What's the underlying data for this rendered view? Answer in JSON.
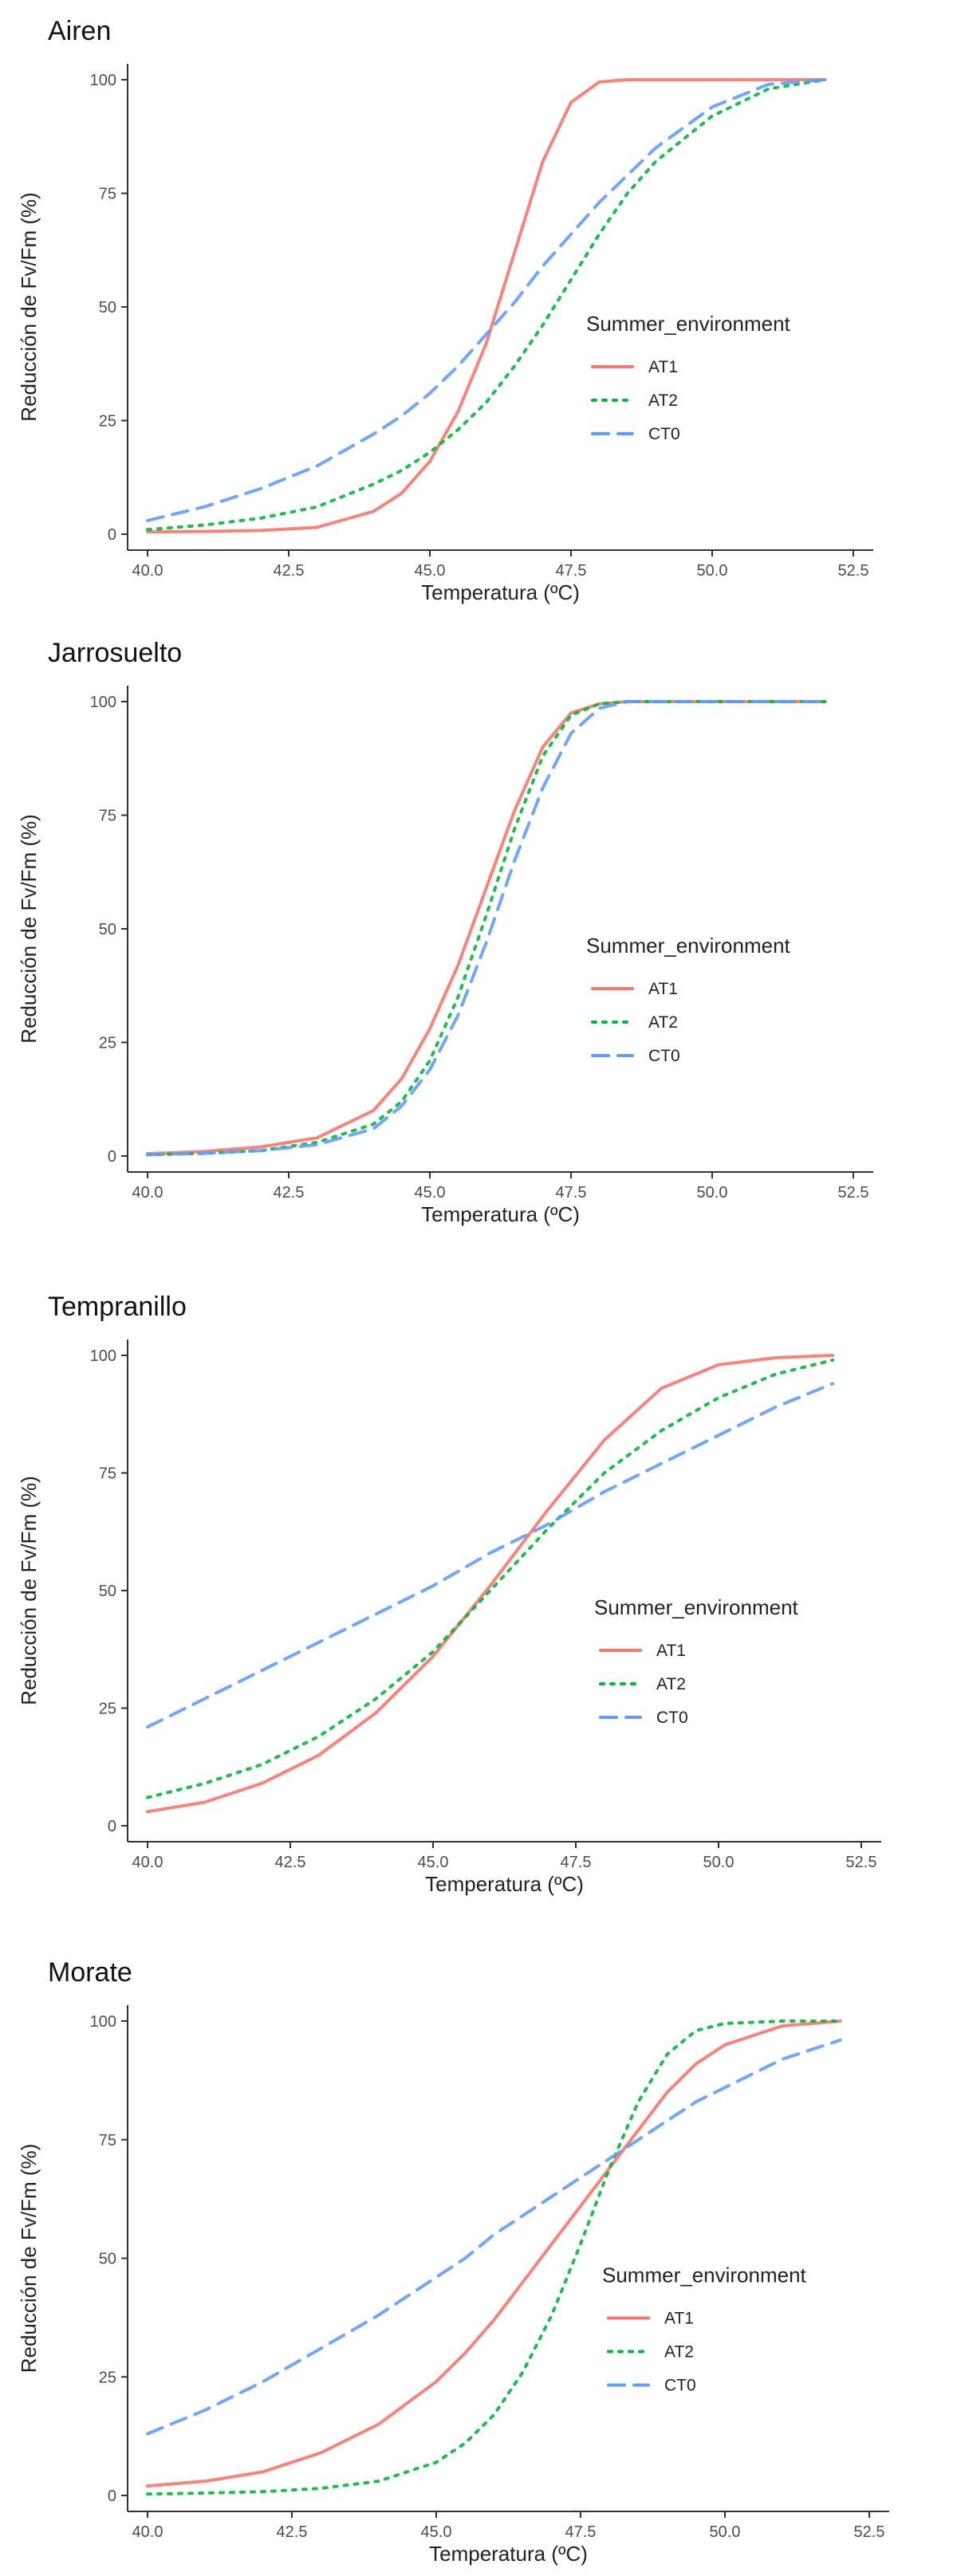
{
  "colors": {
    "AT1": "#F8766D",
    "AT2": "#00BA38",
    "CT0": "#619CFF",
    "axis": "#333333"
  },
  "legend": {
    "title": "Summer_environment",
    "placement": "right",
    "entries": [
      "AT1",
      "AT2",
      "CT0"
    ]
  },
  "chart_data": [
    {
      "type": "line",
      "title": "Airen",
      "xlabel": "Temperatura (ºC)",
      "ylabel": "Reducción de Fv/Fm (%)",
      "xlim": [
        40,
        52.5
      ],
      "ylim": [
        0,
        100
      ],
      "x_ticks": [
        "40.0",
        "42.5",
        "45.0",
        "47.5",
        "50.0",
        "52.5"
      ],
      "y_ticks": [
        "0",
        "25",
        "50",
        "75",
        "100"
      ],
      "grid": false,
      "x": [
        40,
        41,
        42,
        43,
        44,
        44.5,
        45,
        45.5,
        46,
        46.5,
        47,
        47.5,
        48,
        48.5,
        49,
        50,
        51,
        52
      ],
      "series": [
        {
          "name": "AT1",
          "values": [
            0.5,
            0.6,
            0.8,
            1.5,
            5,
            9,
            16,
            27,
            42,
            62,
            82,
            95,
            99.5,
            100,
            100,
            100,
            100,
            100
          ]
        },
        {
          "name": "AT2",
          "values": [
            1,
            2,
            3.5,
            6,
            11,
            14,
            18,
            23,
            29,
            37,
            46,
            56,
            66,
            75,
            82,
            92,
            98,
            100
          ]
        },
        {
          "name": "CT0",
          "values": [
            3,
            6,
            10,
            15,
            22,
            26,
            31,
            37,
            44,
            51,
            59,
            66,
            73,
            79,
            85,
            94,
            99,
            100
          ]
        }
      ]
    },
    {
      "type": "line",
      "title": "Jarrosuelto",
      "xlabel": "Temperatura (ºC)",
      "ylabel": "Reducción de Fv/Fm (%)",
      "xlim": [
        40,
        52.5
      ],
      "ylim": [
        0,
        100
      ],
      "x_ticks": [
        "40.0",
        "42.5",
        "45.0",
        "47.5",
        "50.0",
        "52.5"
      ],
      "y_ticks": [
        "0",
        "25",
        "50",
        "75",
        "100"
      ],
      "grid": false,
      "x": [
        40,
        41,
        42,
        43,
        44,
        44.5,
        45,
        45.5,
        46,
        46.5,
        47,
        47.5,
        48,
        48.5,
        49,
        50,
        51,
        52
      ],
      "series": [
        {
          "name": "AT1",
          "values": [
            0.5,
            1,
            2,
            4,
            10,
            17,
            28,
            42,
            59,
            76,
            90,
            97.5,
            99.5,
            100,
            100,
            100,
            100,
            100
          ]
        },
        {
          "name": "AT2",
          "values": [
            0.3,
            0.6,
            1.2,
            3,
            7,
            12,
            21,
            35,
            53,
            72,
            88,
            97,
            99.5,
            100,
            100,
            100,
            100,
            100
          ]
        },
        {
          "name": "CT0",
          "values": [
            0.3,
            0.6,
            1.2,
            2.5,
            6,
            11,
            19,
            31,
            47,
            65,
            81,
            93,
            98.5,
            100,
            100,
            100,
            100,
            100
          ]
        }
      ]
    },
    {
      "type": "line",
      "title": "Tempranillo",
      "xlabel": "Temperatura (ºC)",
      "ylabel": "Reducción de Fv/Fm (%)",
      "xlim": [
        40,
        52.5
      ],
      "ylim": [
        0,
        100
      ],
      "x_ticks": [
        "40.0",
        "42.5",
        "45.0",
        "47.5",
        "50.0",
        "52.5"
      ],
      "y_ticks": [
        "0",
        "25",
        "50",
        "75",
        "100"
      ],
      "grid": false,
      "x": [
        40,
        41,
        42,
        43,
        44,
        45,
        46,
        47,
        48,
        49,
        50,
        51,
        52
      ],
      "series": [
        {
          "name": "AT1",
          "values": [
            3,
            5,
            9,
            15,
            24,
            36,
            51,
            67,
            82,
            93,
            98,
            99.5,
            100
          ]
        },
        {
          "name": "AT2",
          "values": [
            6,
            9,
            13,
            19,
            27,
            37,
            50,
            63,
            75,
            84,
            91,
            96,
            99
          ]
        },
        {
          "name": "CT0",
          "values": [
            21,
            27,
            33,
            39,
            45,
            51,
            58,
            64,
            71,
            77,
            83,
            89,
            94
          ]
        }
      ]
    },
    {
      "type": "line",
      "title": "Morate",
      "xlabel": "Temperatura (ºC)",
      "ylabel": "Reducción de Fv/Fm (%)",
      "xlim": [
        40,
        52.5
      ],
      "ylim": [
        0,
        100
      ],
      "x_ticks": [
        "40.0",
        "42.5",
        "45.0",
        "47.5",
        "50.0",
        "52.5"
      ],
      "y_ticks": [
        "0",
        "25",
        "50",
        "75",
        "100"
      ],
      "grid": false,
      "x": [
        40,
        41,
        42,
        43,
        44,
        45,
        45.5,
        46,
        46.5,
        47,
        47.5,
        48,
        48.5,
        49,
        49.5,
        50,
        51,
        52
      ],
      "series": [
        {
          "name": "AT1",
          "values": [
            2,
            3,
            5,
            9,
            15,
            24,
            30,
            37,
            45,
            53,
            61,
            69,
            77,
            85,
            91,
            95,
            99,
            100
          ]
        },
        {
          "name": "AT2",
          "values": [
            0.3,
            0.5,
            0.8,
            1.5,
            3,
            7,
            11,
            17,
            26,
            38,
            53,
            69,
            83,
            93,
            98,
            99.5,
            100,
            100
          ]
        },
        {
          "name": "CT0",
          "values": [
            13,
            18,
            24,
            31,
            38,
            46,
            50,
            55,
            59,
            63,
            67,
            71,
            75,
            79,
            83,
            86,
            92,
            96
          ]
        }
      ]
    }
  ]
}
